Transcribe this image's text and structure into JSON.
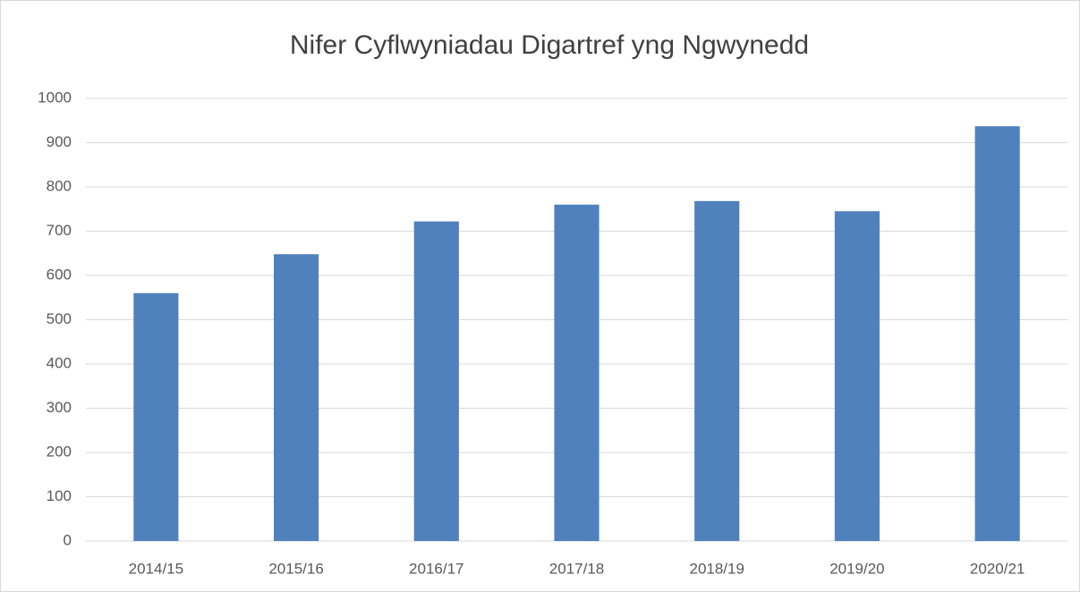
{
  "chart_data": {
    "type": "bar",
    "title": "Nifer Cyflwyniadau Digartref yng Ngwynedd",
    "categories": [
      "2014/15",
      "2015/16",
      "2016/17",
      "2017/18",
      "2018/19",
      "2019/20",
      "2020/21"
    ],
    "values": [
      560,
      648,
      722,
      760,
      768,
      745,
      937
    ],
    "color": "#4f81bd",
    "ylim": [
      0,
      1000
    ],
    "yticks": [
      0,
      100,
      200,
      300,
      400,
      500,
      600,
      700,
      800,
      900,
      1000
    ],
    "grid": true
  }
}
